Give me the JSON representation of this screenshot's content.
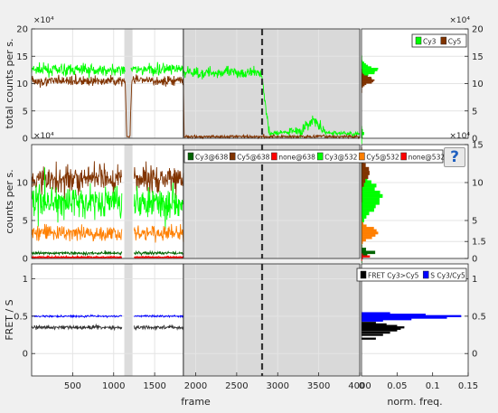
{
  "ui": {
    "help_button": "?"
  },
  "chart_data": [
    {
      "type": "line",
      "ylabel": "total counts per s.",
      "ylim": [
        0,
        20
      ],
      "yticks": [
        "0",
        "5",
        "10",
        "15",
        "20"
      ],
      "y_exponent": "×10⁴",
      "xlim": [
        0,
        4000
      ],
      "excluded_frames": [
        1130,
        1230
      ],
      "series": [
        {
          "name": "Cy3",
          "color": "#00ff00",
          "x": [
            0,
            1150,
            1200,
            1850,
            1860,
            2800,
            2900,
            3300,
            3450,
            3500,
            3600,
            4000
          ],
          "values": [
            12.5,
            12.5,
            12.5,
            12.5,
            12.0,
            12.0,
            0.8,
            1.5,
            3.5,
            2.0,
            1.0,
            0.8
          ]
        },
        {
          "name": "Cy5",
          "color": "#803300",
          "x": [
            0,
            1140,
            1160,
            1200,
            1220,
            1850,
            1860,
            4000
          ],
          "values": [
            10.5,
            10.5,
            0.3,
            0.3,
            10.5,
            10.5,
            0.3,
            0.3
          ]
        }
      ]
    },
    {
      "type": "bar",
      "orientation": "horizontal",
      "legend": [
        "Cy3",
        "Cy5"
      ],
      "ylim": [
        0,
        20
      ],
      "yticks": [
        "0",
        "5",
        "10",
        "15",
        "20"
      ],
      "y_exponent": "×10⁴"
    },
    {
      "type": "line",
      "ylabel": "counts per s.",
      "ylim": [
        0,
        15
      ],
      "yticks": [
        "0",
        "5",
        "10"
      ],
      "y_exponent": "×10⁴",
      "xlim": [
        0,
        4000
      ],
      "series": [
        {
          "name": "Cy3@638",
          "color": "#006400",
          "x": [
            0,
            1850
          ],
          "values": [
            0.7,
            0.7
          ]
        },
        {
          "name": "Cy5@638",
          "color": "#803300",
          "x": [
            0,
            1850
          ],
          "values": [
            10.5,
            10.5
          ]
        },
        {
          "name": "none@638",
          "color": "#ff0000",
          "x": [
            0,
            1850
          ],
          "values": [
            0.2,
            0.2
          ]
        },
        {
          "name": "Cy3@532",
          "color": "#00ff00",
          "x": [
            0,
            1850
          ],
          "values": [
            7.5,
            7.5
          ]
        },
        {
          "name": "Cy5@532",
          "color": "#ff7f00",
          "x": [
            0,
            1850
          ],
          "values": [
            3.3,
            3.3
          ]
        },
        {
          "name": "none@532",
          "color": "#ff0000",
          "x": [
            0,
            1850
          ],
          "values": [
            0.1,
            0.1
          ]
        }
      ]
    },
    {
      "type": "bar",
      "orientation": "horizontal",
      "ylim": [
        0,
        15
      ],
      "yticks": [
        "0",
        "5",
        "10",
        "15"
      ],
      "y_exponent": "×10⁴"
    },
    {
      "type": "line",
      "ylabel": "FRET / S",
      "xlabel": "frame",
      "ylim": [
        -0.3,
        1.2
      ],
      "yticks": [
        "0",
        "0.5",
        "1"
      ],
      "xlim": [
        0,
        4000
      ],
      "xticks": [
        "500",
        "1000",
        "1500",
        "2000",
        "2500",
        "3000",
        "3500",
        "4000"
      ],
      "series": [
        {
          "name": "FRET Cy3>Cy5",
          "color": "#333333",
          "x": [
            0,
            1850
          ],
          "values": [
            0.35,
            0.35
          ]
        },
        {
          "name": "S Cy3/Cy5",
          "color": "#0000ff",
          "x": [
            0,
            1850
          ],
          "values": [
            0.5,
            0.5
          ]
        }
      ]
    },
    {
      "type": "bar",
      "orientation": "horizontal",
      "xlabel": "norm. freq.",
      "xlim": [
        0,
        0.15
      ],
      "xticks": [
        "0",
        "0.05",
        "0.1",
        "0.15"
      ],
      "ylim": [
        -0.3,
        1.2
      ],
      "yticks": [
        "0",
        "0.5",
        "1",
        "1.5"
      ],
      "legend": [
        "FRET Cy3>Cy5",
        "S Cy3/Cy5"
      ],
      "series": [
        {
          "name": "FRET Cy3>Cy5",
          "color": "#000000",
          "y": [
            0.2,
            0.25,
            0.28,
            0.31,
            0.33,
            0.35,
            0.37,
            0.39,
            0.41
          ],
          "values": [
            0.02,
            0.03,
            0.04,
            0.05,
            0.055,
            0.06,
            0.05,
            0.035,
            0.02
          ]
        },
        {
          "name": "S Cy3/Cy5",
          "color": "#0000ff",
          "y": [
            0.44,
            0.46,
            0.48,
            0.5,
            0.52,
            0.54
          ],
          "values": [
            0.03,
            0.07,
            0.12,
            0.14,
            0.09,
            0.04
          ]
        }
      ]
    }
  ]
}
